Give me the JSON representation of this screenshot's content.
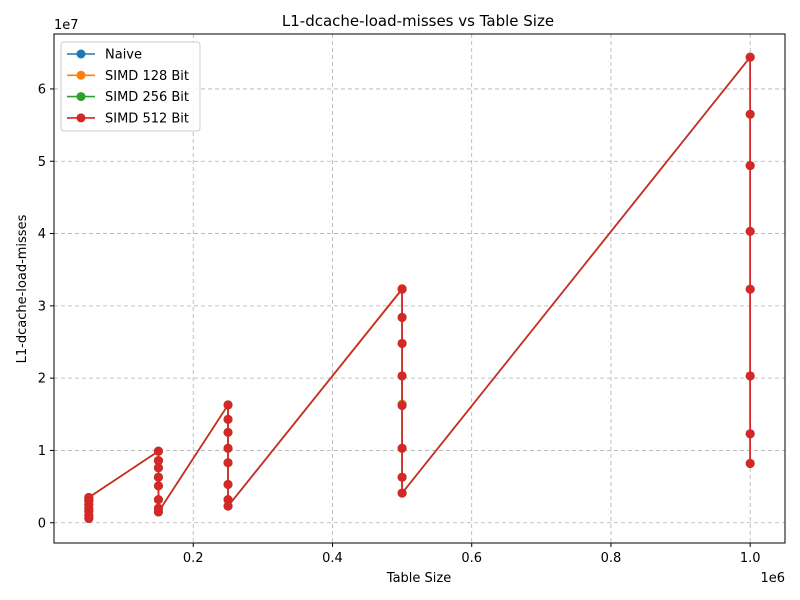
{
  "chart_data": {
    "type": "line",
    "title": "L1-dcache-load-misses vs Table Size",
    "xlabel": "Table Size",
    "ylabel": "L1-dcache-load-misses",
    "x_offset_text": "1e6",
    "y_offset_text": "1e7",
    "xlim": [
      0,
      1050000
    ],
    "ylim": [
      -2800000,
      67600000
    ],
    "xticks": [
      {
        "value": 200000,
        "label": "0.2"
      },
      {
        "value": 400000,
        "label": "0.4"
      },
      {
        "value": 600000,
        "label": "0.6"
      },
      {
        "value": 800000,
        "label": "0.8"
      },
      {
        "value": 1000000,
        "label": "1.0"
      }
    ],
    "yticks": [
      {
        "value": 0,
        "label": "0"
      },
      {
        "value": 10000000,
        "label": "1"
      },
      {
        "value": 20000000,
        "label": "2"
      },
      {
        "value": 30000000,
        "label": "3"
      },
      {
        "value": 40000000,
        "label": "4"
      },
      {
        "value": 50000000,
        "label": "5"
      },
      {
        "value": 60000000,
        "label": "6"
      }
    ],
    "grid": true,
    "legend_position": "top-left",
    "series": [
      {
        "name": "Naive",
        "color": "#1f77b4",
        "x": [
          50000,
          50000,
          50000,
          50000,
          50000,
          50000,
          50000,
          50000,
          150000,
          150000,
          150000,
          150000,
          150000,
          150000,
          150000,
          150000,
          250000,
          250000,
          250000,
          250000,
          250000,
          250000,
          250000,
          250000,
          500000,
          500000,
          500000,
          500000,
          500000,
          500000,
          500000,
          500000,
          1000000,
          1000000,
          1000000,
          1000000,
          1000000,
          1000000,
          1000000,
          1000000
        ],
        "y": [
          600000,
          1000000,
          1600000,
          2000000,
          2500000,
          3000000,
          3300000,
          3500000,
          9900000,
          8600000,
          7600000,
          6300000,
          5100000,
          3200000,
          2000000,
          1500000,
          16300000,
          14300000,
          12500000,
          10300000,
          8300000,
          5300000,
          3200000,
          2300000,
          32300000,
          28400000,
          24800000,
          20300000,
          16400000,
          10300000,
          6300000,
          4100000,
          64400000,
          56500000,
          49400000,
          40300000,
          32300000,
          20300000,
          12300000,
          8200000
        ]
      },
      {
        "name": "SIMD 128 Bit",
        "color": "#ff7f0e",
        "x": [
          50000,
          50000,
          50000,
          50000,
          50000,
          50000,
          50000,
          50000,
          150000,
          150000,
          150000,
          150000,
          150000,
          150000,
          150000,
          150000,
          250000,
          250000,
          250000,
          250000,
          250000,
          250000,
          250000,
          250000,
          500000,
          500000,
          500000,
          500000,
          500000,
          500000,
          500000,
          500000,
          1000000,
          1000000,
          1000000,
          1000000,
          1000000,
          1000000,
          1000000,
          1000000
        ],
        "y": [
          600000,
          1000000,
          1600000,
          2000000,
          2500000,
          3000000,
          3300000,
          3500000,
          9900000,
          8600000,
          7600000,
          6300000,
          5100000,
          3200000,
          2000000,
          1500000,
          16300000,
          14300000,
          12500000,
          10300000,
          8300000,
          5300000,
          3200000,
          2300000,
          32400000,
          28400000,
          24800000,
          20300000,
          16400000,
          10300000,
          6300000,
          4100000,
          64400000,
          56500000,
          49400000,
          40300000,
          32300000,
          20300000,
          12300000,
          8200000
        ]
      },
      {
        "name": "SIMD 256 Bit",
        "color": "#2ca02c",
        "x": [
          50000,
          50000,
          50000,
          50000,
          50000,
          50000,
          50000,
          50000,
          150000,
          150000,
          150000,
          150000,
          150000,
          150000,
          150000,
          150000,
          250000,
          250000,
          250000,
          250000,
          250000,
          250000,
          250000,
          250000,
          500000,
          500000,
          500000,
          500000,
          500000,
          500000,
          500000,
          500000,
          1000000,
          1000000,
          1000000,
          1000000,
          1000000,
          1000000,
          1000000,
          1000000
        ],
        "y": [
          600000,
          1000000,
          1600000,
          2000000,
          2500000,
          3000000,
          3300000,
          3500000,
          9900000,
          8600000,
          7600000,
          6300000,
          5100000,
          3200000,
          2000000,
          1500000,
          16300000,
          14300000,
          12500000,
          10300000,
          8300000,
          5300000,
          3200000,
          2300000,
          32300000,
          28400000,
          24800000,
          20300000,
          16300000,
          10300000,
          6300000,
          4100000,
          64400000,
          56500000,
          49400000,
          40300000,
          32300000,
          20300000,
          12300000,
          8200000
        ]
      },
      {
        "name": "SIMD 512 Bit",
        "color": "#d62728",
        "x": [
          50000,
          50000,
          50000,
          50000,
          50000,
          50000,
          50000,
          50000,
          150000,
          150000,
          150000,
          150000,
          150000,
          150000,
          150000,
          150000,
          250000,
          250000,
          250000,
          250000,
          250000,
          250000,
          250000,
          250000,
          500000,
          500000,
          500000,
          500000,
          500000,
          500000,
          500000,
          500000,
          1000000,
          1000000,
          1000000,
          1000000,
          1000000,
          1000000,
          1000000,
          1000000
        ],
        "y": [
          600000,
          1000000,
          1600000,
          2000000,
          2500000,
          3000000,
          3300000,
          3500000,
          9900000,
          8600000,
          7600000,
          6300000,
          5100000,
          3200000,
          2000000,
          1500000,
          16300000,
          14300000,
          12500000,
          10300000,
          8300000,
          5300000,
          3200000,
          2300000,
          32300000,
          28400000,
          24800000,
          20300000,
          16200000,
          10300000,
          6300000,
          4100000,
          64400000,
          56500000,
          49400000,
          40300000,
          32300000,
          20300000,
          12300000,
          8200000
        ]
      }
    ]
  }
}
